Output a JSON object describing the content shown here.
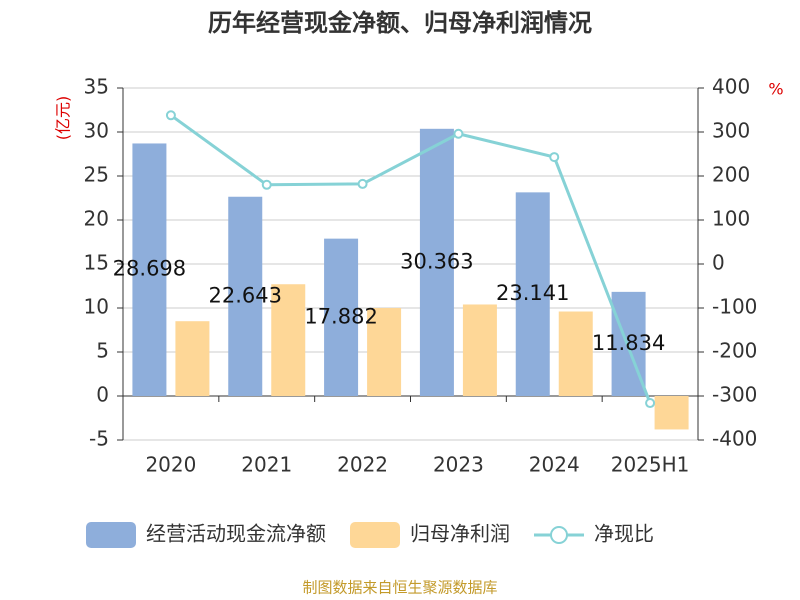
{
  "chart_data": {
    "type": "bar",
    "title": "历年经营现金净额、归母净利润情况",
    "categories": [
      "2020",
      "2021",
      "2022",
      "2023",
      "2024",
      "2025H1"
    ],
    "series": [
      {
        "name": "经营活动现金流净额",
        "type": "bar",
        "color": "#8eaedb",
        "values": [
          28.698,
          22.643,
          17.882,
          30.363,
          23.141,
          11.834
        ],
        "show_labels": true
      },
      {
        "name": "归母净利润",
        "type": "bar",
        "color": "#fed797",
        "values": [
          8.5,
          12.7,
          10.0,
          10.4,
          9.6,
          -3.8
        ]
      },
      {
        "name": "净现比",
        "type": "line",
        "axis": "y2",
        "color": "#86d2d6",
        "values": [
          338,
          180,
          182,
          296,
          243,
          -316
        ]
      }
    ],
    "ylabel": "(亿元)",
    "y2label": "%",
    "ylim": [
      -5,
      35
    ],
    "yticks": [
      -5,
      0,
      5,
      10,
      15,
      20,
      25,
      30,
      35
    ],
    "y2lim": [
      -400,
      400
    ],
    "y2ticks": [
      -400,
      -300,
      -200,
      -100,
      0,
      100,
      200,
      300,
      400
    ],
    "grid": true,
    "legend": "bottom",
    "source": "制图数据来自恒生聚源数据库"
  }
}
